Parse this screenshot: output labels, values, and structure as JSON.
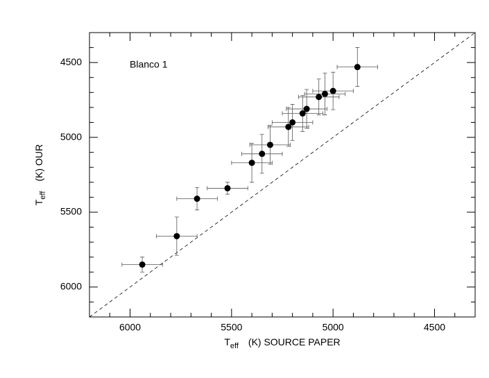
{
  "chart_data": {
    "type": "scatter",
    "annotation": "Blanco 1",
    "xlabel": [
      "T",
      "eff",
      "(K) SOURCE PAPER"
    ],
    "ylabel": [
      "T",
      "eff",
      "(K) OUR"
    ],
    "x": [
      4880,
      5000,
      5040,
      5070,
      5130,
      5150,
      5200,
      5220,
      5310,
      5350,
      5400,
      5520,
      5670,
      5770,
      5940
    ],
    "y": [
      4530,
      4690,
      4710,
      4730,
      4810,
      4840,
      4900,
      4930,
      5050,
      5110,
      5170,
      5340,
      5410,
      5660,
      5850
    ],
    "xerr": [
      100,
      100,
      100,
      100,
      100,
      100,
      100,
      100,
      100,
      100,
      100,
      100,
      100,
      100,
      100
    ],
    "yerr": [
      130,
      125,
      140,
      120,
      130,
      120,
      120,
      130,
      130,
      130,
      130,
      40,
      75,
      128,
      50
    ],
    "color": "#000000",
    "identity_line": true,
    "xlim": [
      6200,
      4300
    ],
    "ylim": [
      6200,
      4300
    ],
    "xticks": [
      6000,
      5500,
      5000,
      4500
    ],
    "yticks": [
      6000,
      5500,
      5000,
      4500
    ],
    "xminorticks": [
      6100,
      5900,
      5800,
      5700,
      5600,
      5400,
      5300,
      5200,
      5100,
      4900,
      4800,
      4700,
      4600,
      4400
    ],
    "yminorticks": [
      6100,
      5900,
      5800,
      5700,
      5600,
      5400,
      5300,
      5200,
      5100,
      4900,
      4800,
      4700,
      4600,
      4400
    ]
  }
}
